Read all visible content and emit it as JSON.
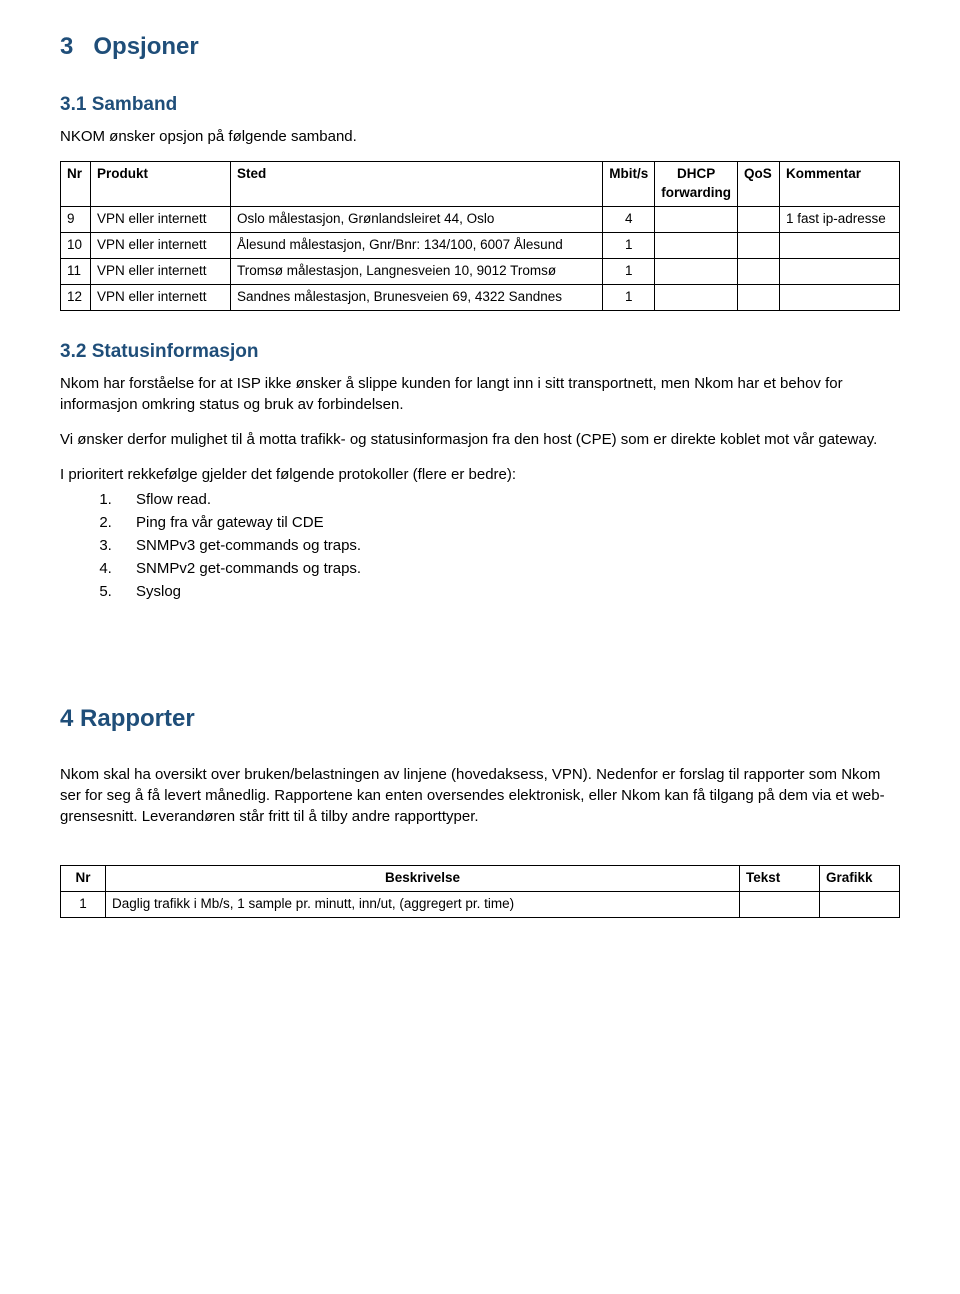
{
  "section3": {
    "number": "3",
    "title": "Opsjoner",
    "sub1": {
      "heading": "3.1 Samband",
      "intro": "NKOM ønsker opsjon på følgende samband."
    },
    "table1": {
      "headers": [
        "Nr",
        "Produkt",
        "Sted",
        "Mbit/s",
        "DHCP forwarding",
        "QoS",
        "Kommentar"
      ],
      "rows": [
        {
          "nr": "9",
          "produkt": "VPN eller internett",
          "sted": "Oslo målestasjon, Grønlandsleiret 44, Oslo",
          "mbits": "4",
          "dhcp": "",
          "qos": "",
          "kommentar": "1 fast ip-adresse"
        },
        {
          "nr": "10",
          "produkt": "VPN eller internett",
          "sted": "Ålesund målestasjon, Gnr/Bnr: 134/100, 6007 Ålesund",
          "mbits": "1",
          "dhcp": "",
          "qos": "",
          "kommentar": ""
        },
        {
          "nr": "11",
          "produkt": "VPN eller internett",
          "sted": "Tromsø målestasjon, Langnesveien 10, 9012 Tromsø",
          "mbits": "1",
          "dhcp": "",
          "qos": "",
          "kommentar": ""
        },
        {
          "nr": "12",
          "produkt": "VPN eller internett",
          "sted": "Sandnes målestasjon, Brunesveien 69, 4322 Sandnes",
          "mbits": "1",
          "dhcp": "",
          "qos": "",
          "kommentar": ""
        }
      ],
      "col_widths": [
        "30px",
        "140px",
        "auto",
        "52px",
        "72px",
        "42px",
        "120px"
      ]
    },
    "sub2": {
      "heading": "3.2 Statusinformasjon",
      "p1": "Nkom  har forståelse for at ISP ikke ønsker å slippe kunden for langt inn i sitt transportnett, men Nkom  har et behov for informasjon omkring status og bruk av forbindelsen.",
      "p2": "Vi ønsker derfor mulighet til å motta trafikk- og statusinformasjon fra den host (CPE) som er direkte koblet mot vår gateway.",
      "p3": "I prioritert rekkefølge gjelder det følgende protokoller (flere er bedre):",
      "items": [
        "Sflow read.",
        "Ping fra vår gateway til CDE",
        "SNMPv3 get-commands og traps.",
        "SNMPv2 get-commands og traps.",
        "Syslog"
      ]
    }
  },
  "section4": {
    "heading": "4 Rapporter",
    "p1": "Nkom skal ha oversikt over bruken/belastningen av linjene (hovedaksess, VPN). Nedenfor er forslag til rapporter som Nkom ser for seg å få levert månedlig. Rapportene kan enten oversendes elektronisk, eller Nkom kan få tilgang på dem via et web-grensesnitt. Leverandøren står fritt til å tilby andre rapporttyper.",
    "table2": {
      "headers": [
        "Nr",
        "Beskrivelse",
        "Tekst",
        "Grafikk"
      ],
      "rows": [
        {
          "nr": "1",
          "besk": "Daglig trafikk i Mb/s, 1 sample pr. minutt, inn/ut, (aggregert pr. time)",
          "tekst": "",
          "grafikk": ""
        }
      ]
    }
  },
  "colors": {
    "heading": "#1f4e79",
    "text": "#000000",
    "border": "#000000",
    "background": "#ffffff"
  }
}
